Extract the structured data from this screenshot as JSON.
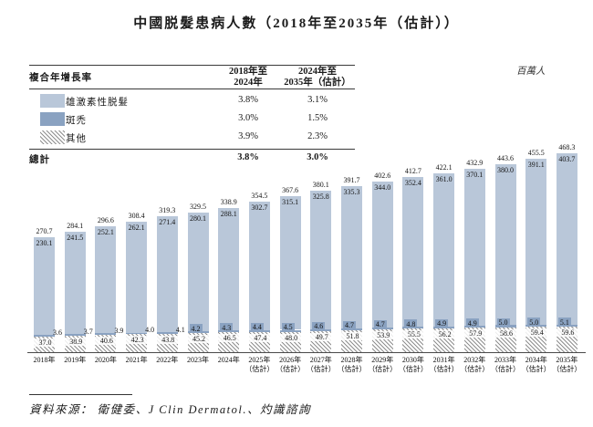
{
  "title": "中國脱髮患病人數（2018年至2035年（估計））",
  "unit_label": "百萬人",
  "cagr_table": {
    "row_header": "複合年增長率",
    "col_headers": [
      {
        "line1": "2018年至",
        "line2": "2024年"
      },
      {
        "line1": "2024年至",
        "line2": "2035年（估計）"
      }
    ],
    "rows": [
      {
        "swatch": "light-blue-square",
        "label": "雄激素性脱髮",
        "values": [
          "3.8%",
          "3.1%"
        ]
      },
      {
        "swatch": "dark-blue-square",
        "label": "斑禿",
        "values": [
          "3.0%",
          "1.5%"
        ]
      },
      {
        "swatch": "diagonal-hatch-square",
        "label": "其他",
        "values": [
          "3.9%",
          "2.3%"
        ]
      }
    ],
    "total_row": {
      "label": "總計",
      "values": [
        "3.8%",
        "3.0%"
      ]
    }
  },
  "chart_data": {
    "type": "bar",
    "stacked": true,
    "title": "中國脱髮患病人數（2018年至2035年（估計））",
    "ylabel": "百萬人",
    "ylim": [
      0,
      480
    ],
    "grid": false,
    "categories": [
      "2018年",
      "2019年",
      "2020年",
      "2021年",
      "2022年",
      "2023年",
      "2024年",
      "2025年",
      "2026年",
      "2027年",
      "2028年",
      "2029年",
      "2030年",
      "2031年",
      "2032年",
      "2033年",
      "2034年",
      "2035年"
    ],
    "estimate_suffix": "（估計）",
    "estimate_from_index": 7,
    "series": [
      {
        "name": "雄激素性脱髮",
        "color": "#b9c7d9",
        "values": [
          230.1,
          241.5,
          252.1,
          262.1,
          271.4,
          280.1,
          288.1,
          302.7,
          315.1,
          325.8,
          335.3,
          344.0,
          352.4,
          361.0,
          370.1,
          380.0,
          391.1,
          403.7
        ]
      },
      {
        "name": "斑禿",
        "color": "#8aa2c1",
        "values": [
          3.6,
          3.7,
          3.9,
          4.0,
          4.1,
          4.2,
          4.3,
          4.4,
          4.5,
          4.6,
          4.7,
          4.7,
          4.8,
          4.9,
          4.9,
          5.0,
          5.0,
          5.1
        ]
      },
      {
        "name": "其他",
        "pattern": "diagonal-hatch",
        "values": [
          37.0,
          38.9,
          40.6,
          42.3,
          43.8,
          45.2,
          46.5,
          47.4,
          48.0,
          49.7,
          51.8,
          53.9,
          55.5,
          56.2,
          57.9,
          58.6,
          59.4,
          59.6
        ]
      }
    ],
    "totals": [
      270.7,
      284.1,
      296.6,
      308.4,
      319.3,
      329.5,
      338.9,
      354.5,
      367.6,
      380.1,
      391.7,
      402.6,
      412.7,
      422.1,
      432.9,
      443.6,
      455.5,
      468.3
    ]
  },
  "footer": {
    "source": "資料來源： 衛健委、J Clin Dermatol.、灼識諮詢"
  }
}
